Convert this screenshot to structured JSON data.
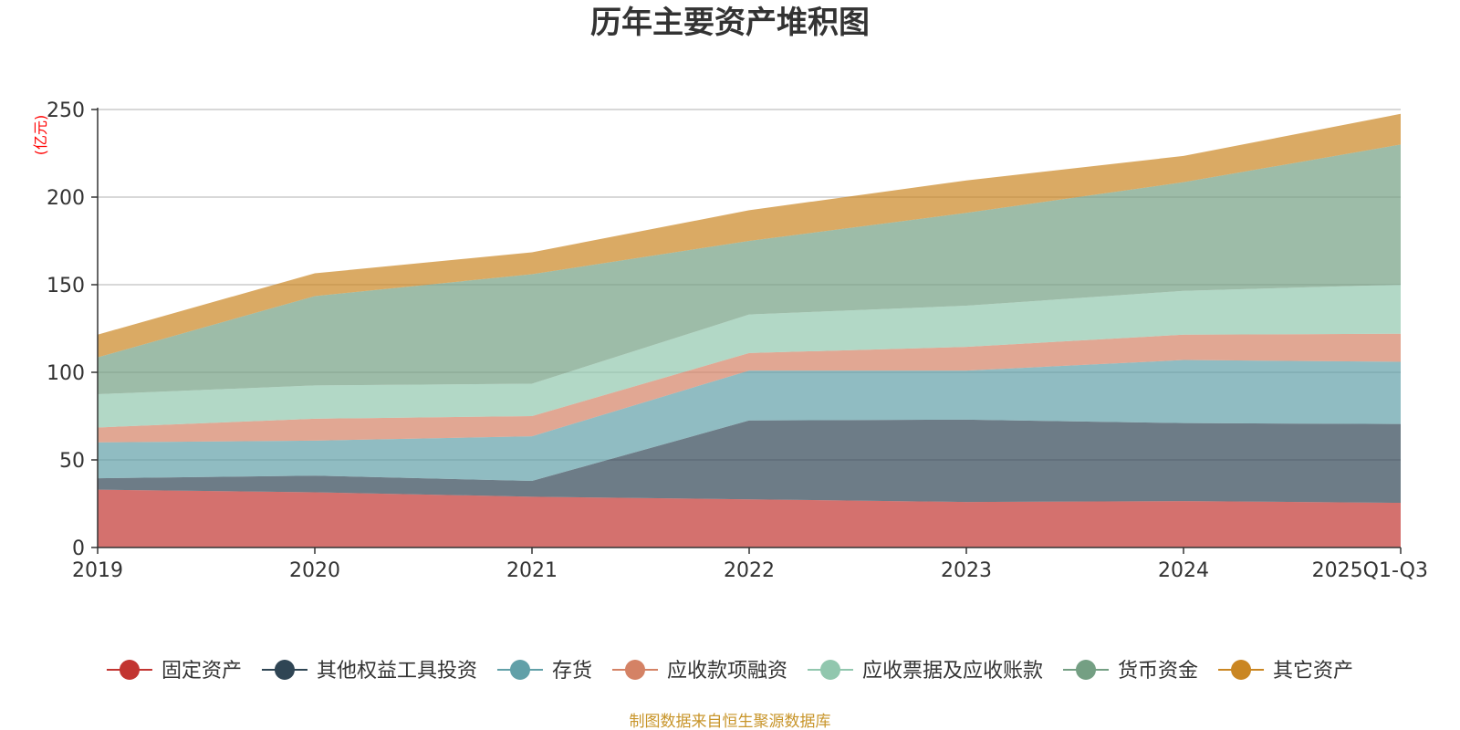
{
  "chart_data": {
    "type": "area",
    "stacked": true,
    "title": "历年主要资产堆积图",
    "ylabel": "(亿元)",
    "ylim": [
      0,
      250
    ],
    "yticks": [
      0,
      50,
      100,
      150,
      200,
      250
    ],
    "categories": [
      "2019",
      "2020",
      "2021",
      "2022",
      "2023",
      "2024",
      "2025Q1-Q3"
    ],
    "series": [
      {
        "name": "固定资产",
        "color": "#c23531",
        "values": [
          33,
          31.5,
          29,
          27.5,
          26,
          26.5,
          25.5
        ]
      },
      {
        "name": "其他权益工具投资",
        "color": "#2f4554",
        "values": [
          6.5,
          9.5,
          9,
          45,
          47,
          44.5,
          45
        ]
      },
      {
        "name": "存货",
        "color": "#61a0a8",
        "values": [
          20.5,
          20,
          25.5,
          28.5,
          28,
          36,
          35.5
        ]
      },
      {
        "name": "应收款项融资",
        "color": "#d48265",
        "values": [
          8.5,
          12.5,
          11.5,
          10,
          13.5,
          14.5,
          16
        ]
      },
      {
        "name": "应收票据及应收账款",
        "color": "#91c7ae",
        "values": [
          19,
          19,
          18.5,
          22,
          23.5,
          25,
          28
        ]
      },
      {
        "name": "货币资金",
        "color": "#749f83",
        "values": [
          21,
          51,
          62.5,
          42,
          53,
          62,
          80
        ]
      },
      {
        "name": "其它资产",
        "color": "#ca8622",
        "values": [
          13,
          13,
          12.5,
          17.5,
          18.5,
          15,
          17.5
        ]
      }
    ],
    "grid": true,
    "legend_position": "bottom"
  },
  "footer": {
    "source": "制图数据来自恒生聚源数据库"
  }
}
